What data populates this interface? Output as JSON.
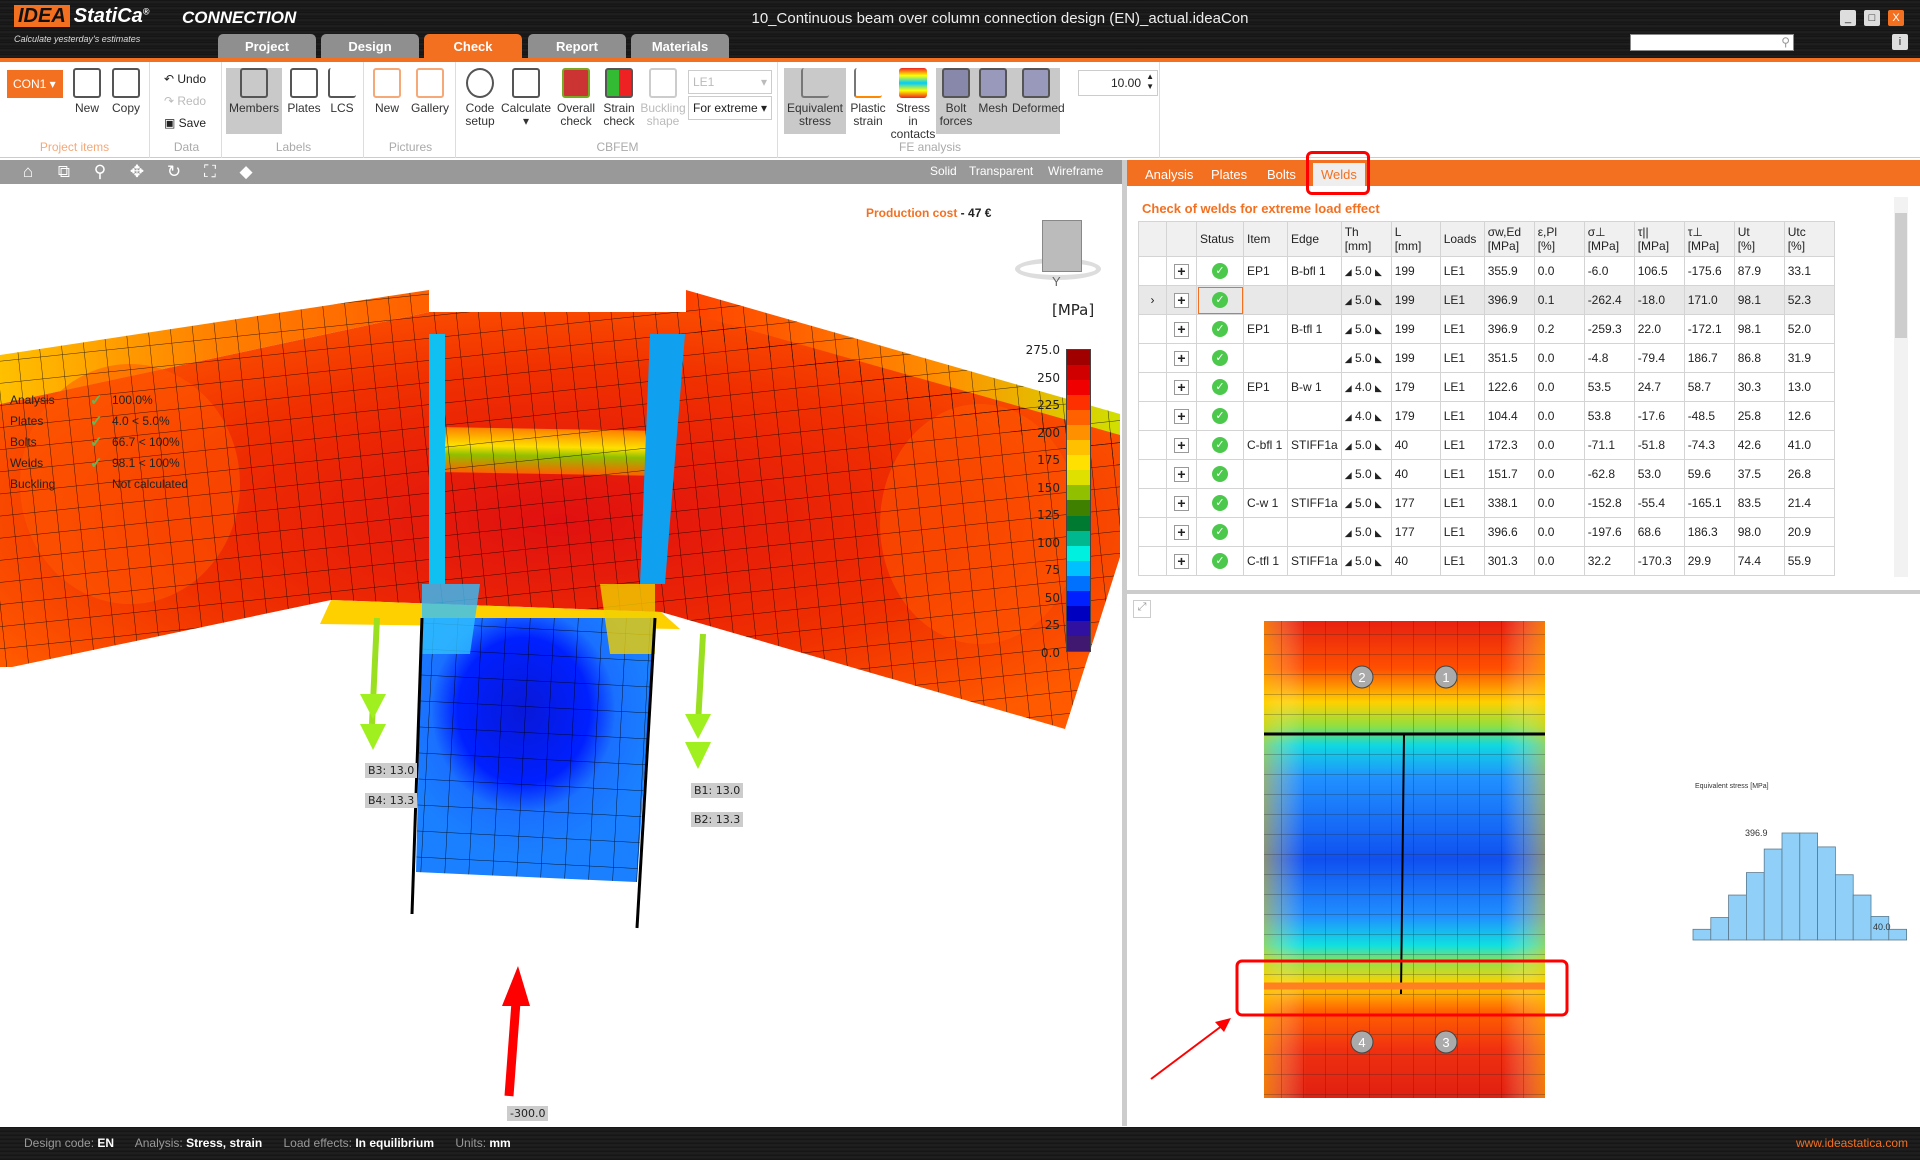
{
  "app": {
    "logo": "IDEA StatiCa",
    "product": "CONNECTION",
    "slogan": "Calculate yesterday's estimates",
    "window_title": "10_Continuous beam over column connection design (EN)_actual.ideaCon"
  },
  "main_tabs": [
    {
      "label": "Project"
    },
    {
      "label": "Design"
    },
    {
      "label": "Check",
      "active": true
    },
    {
      "label": "Report"
    },
    {
      "label": "Materials"
    }
  ],
  "ribbon": {
    "project_items": {
      "label": "Project items",
      "connection": "CON1",
      "new": "New",
      "copy": "Copy"
    },
    "data": {
      "label": "Data",
      "undo": "Undo",
      "redo": "Redo",
      "save": "Save"
    },
    "labels": {
      "label": "Labels",
      "members": "Members",
      "plates": "Plates",
      "lcs": "LCS"
    },
    "pictures": {
      "label": "Pictures",
      "new": "New",
      "gallery": "Gallery"
    },
    "cbfem": {
      "label": "CBFEM",
      "code_setup": "Code setup",
      "calculate": "Calculate",
      "overall_check": "Overall check",
      "strain_check": "Strain check",
      "buckling_shape": "Buckling shape",
      "load_select": "LE1",
      "extreme_select": "For extreme"
    },
    "fe_analysis": {
      "label": "FE analysis",
      "equivalent_stress": "Equivalent stress",
      "plastic_strain": "Plastic strain",
      "stress_in_contacts": "Stress in contacts",
      "bolt_forces": "Bolt forces",
      "mesh": "Mesh",
      "deformed": "Deformed",
      "scale": "10.00"
    }
  },
  "viewer": {
    "modes": [
      "Solid",
      "Transparent",
      "Wireframe"
    ],
    "checks": [
      {
        "label": "Analysis",
        "ok": true,
        "value": "100.0%"
      },
      {
        "label": "Plates",
        "ok": true,
        "value": "4.0 < 5.0%"
      },
      {
        "label": "Bolts",
        "ok": true,
        "value": "66.7 < 100%"
      },
      {
        "label": "Welds",
        "ok": true,
        "value": "98.1 < 100%"
      },
      {
        "label": "Buckling",
        "ok": false,
        "value": "Not calculated"
      }
    ],
    "production_cost_label": "Production cost",
    "production_cost_value": "47 €",
    "legend": {
      "unit": "[MPa]",
      "ticks": [
        "275.0",
        "250",
        "225",
        "200",
        "175",
        "150",
        "125",
        "100",
        "75",
        "50",
        "25",
        "0.0"
      ],
      "colors": [
        "#a00000",
        "#d00000",
        "#f00000",
        "#ff3000",
        "#ff6000",
        "#ff9000",
        "#ffc000",
        "#ffe000",
        "#e0e000",
        "#90c000",
        "#408000",
        "#007a30",
        "#00b890",
        "#00f0e0",
        "#00c0ff",
        "#0070ff",
        "#0020ff",
        "#0000c0",
        "#3010a0",
        "#401870"
      ]
    },
    "bolt_labels": {
      "b1": "B1: 13.0",
      "b2": "B2: 13.3",
      "b3": "B3: 13.0",
      "b4": "B4: 13.3"
    },
    "load_label": "-300.0",
    "cube_label": "Y"
  },
  "right_tabs": [
    {
      "label": "Analysis"
    },
    {
      "label": "Plates"
    },
    {
      "label": "Bolts"
    },
    {
      "label": "Welds",
      "active": true
    }
  ],
  "welds": {
    "title": "Check of welds for extreme load effect",
    "headers": [
      "",
      "",
      "Status",
      "Item",
      "Edge",
      "Th\n[mm]",
      "L\n[mm]",
      "Loads",
      "σw,Ed\n[MPa]",
      "ε,Pl\n[%]",
      "σ⊥\n[MPa]",
      "τ||\n[MPa]",
      "τ⊥\n[MPa]",
      "Ut\n[%]",
      "Utc\n[%]"
    ],
    "rows": [
      {
        "item": "EP1",
        "edge": "B-bfl 1",
        "th": "5.0",
        "l": "199",
        "loads": "LE1",
        "sw": "355.9",
        "epl": "0.0",
        "sp": "-6.0",
        "tpar": "106.5",
        "tperp": "-175.6",
        "ut": "87.9",
        "utc": "33.1"
      },
      {
        "item": "",
        "edge": "",
        "th": "5.0",
        "l": "199",
        "loads": "LE1",
        "sw": "396.9",
        "epl": "0.1",
        "sp": "-262.4",
        "tpar": "-18.0",
        "tperp": "171.0",
        "ut": "98.1",
        "utc": "52.3",
        "selected": true
      },
      {
        "item": "EP1",
        "edge": "B-tfl 1",
        "th": "5.0",
        "l": "199",
        "loads": "LE1",
        "sw": "396.9",
        "epl": "0.2",
        "sp": "-259.3",
        "tpar": "22.0",
        "tperp": "-172.1",
        "ut": "98.1",
        "utc": "52.0"
      },
      {
        "item": "",
        "edge": "",
        "th": "5.0",
        "l": "199",
        "loads": "LE1",
        "sw": "351.5",
        "epl": "0.0",
        "sp": "-4.8",
        "tpar": "-79.4",
        "tperp": "186.7",
        "ut": "86.8",
        "utc": "31.9"
      },
      {
        "item": "EP1",
        "edge": "B-w 1",
        "th": "4.0",
        "l": "179",
        "loads": "LE1",
        "sw": "122.6",
        "epl": "0.0",
        "sp": "53.5",
        "tpar": "24.7",
        "tperp": "58.7",
        "ut": "30.3",
        "utc": "13.0"
      },
      {
        "item": "",
        "edge": "",
        "th": "4.0",
        "l": "179",
        "loads": "LE1",
        "sw": "104.4",
        "epl": "0.0",
        "sp": "53.8",
        "tpar": "-17.6",
        "tperp": "-48.5",
        "ut": "25.8",
        "utc": "12.6"
      },
      {
        "item": "C-bfl 1",
        "edge": "STIFF1a",
        "th": "5.0",
        "l": "40",
        "loads": "LE1",
        "sw": "172.3",
        "epl": "0.0",
        "sp": "-71.1",
        "tpar": "-51.8",
        "tperp": "-74.3",
        "ut": "42.6",
        "utc": "41.0"
      },
      {
        "item": "",
        "edge": "",
        "th": "5.0",
        "l": "40",
        "loads": "LE1",
        "sw": "151.7",
        "epl": "0.0",
        "sp": "-62.8",
        "tpar": "53.0",
        "tperp": "59.6",
        "ut": "37.5",
        "utc": "26.8"
      },
      {
        "item": "C-w 1",
        "edge": "STIFF1a",
        "th": "5.0",
        "l": "177",
        "loads": "LE1",
        "sw": "338.1",
        "epl": "0.0",
        "sp": "-152.8",
        "tpar": "-55.4",
        "tperp": "-165.1",
        "ut": "83.5",
        "utc": "21.4"
      },
      {
        "item": "",
        "edge": "",
        "th": "5.0",
        "l": "177",
        "loads": "LE1",
        "sw": "396.6",
        "epl": "0.0",
        "sp": "-197.6",
        "tpar": "68.6",
        "tperp": "186.3",
        "ut": "98.0",
        "utc": "20.9"
      },
      {
        "item": "C-tfl 1",
        "edge": "STIFF1a",
        "th": "5.0",
        "l": "40",
        "loads": "LE1",
        "sw": "301.3",
        "epl": "0.0",
        "sp": "32.2",
        "tpar": "-170.3",
        "tperp": "29.9",
        "ut": "74.4",
        "utc": "55.9"
      }
    ]
  },
  "weld_detail": {
    "bolt_numbers": [
      "1",
      "2",
      "3",
      "4"
    ],
    "histogram": {
      "title": "Equivalent stress [MPa]",
      "max_label": "396.9",
      "min_label": "40.0",
      "bin_heights": [
        0.1,
        0.21,
        0.42,
        0.63,
        0.85,
        1.0,
        1.0,
        0.87,
        0.61,
        0.42,
        0.22,
        0.1
      ],
      "color": "#90d0f8"
    }
  },
  "statusbar": {
    "design_code_label": "Design code:",
    "design_code": "EN",
    "analysis_label": "Analysis:",
    "analysis": "Stress, strain",
    "load_effects_label": "Load effects:",
    "load_effects": "In equilibrium",
    "units_label": "Units:",
    "units": "mm",
    "website": "www.ideastatica.com"
  },
  "colors": {
    "accent": "#f37021",
    "ok": "#4cc94c",
    "highlight": "#ff0000"
  }
}
